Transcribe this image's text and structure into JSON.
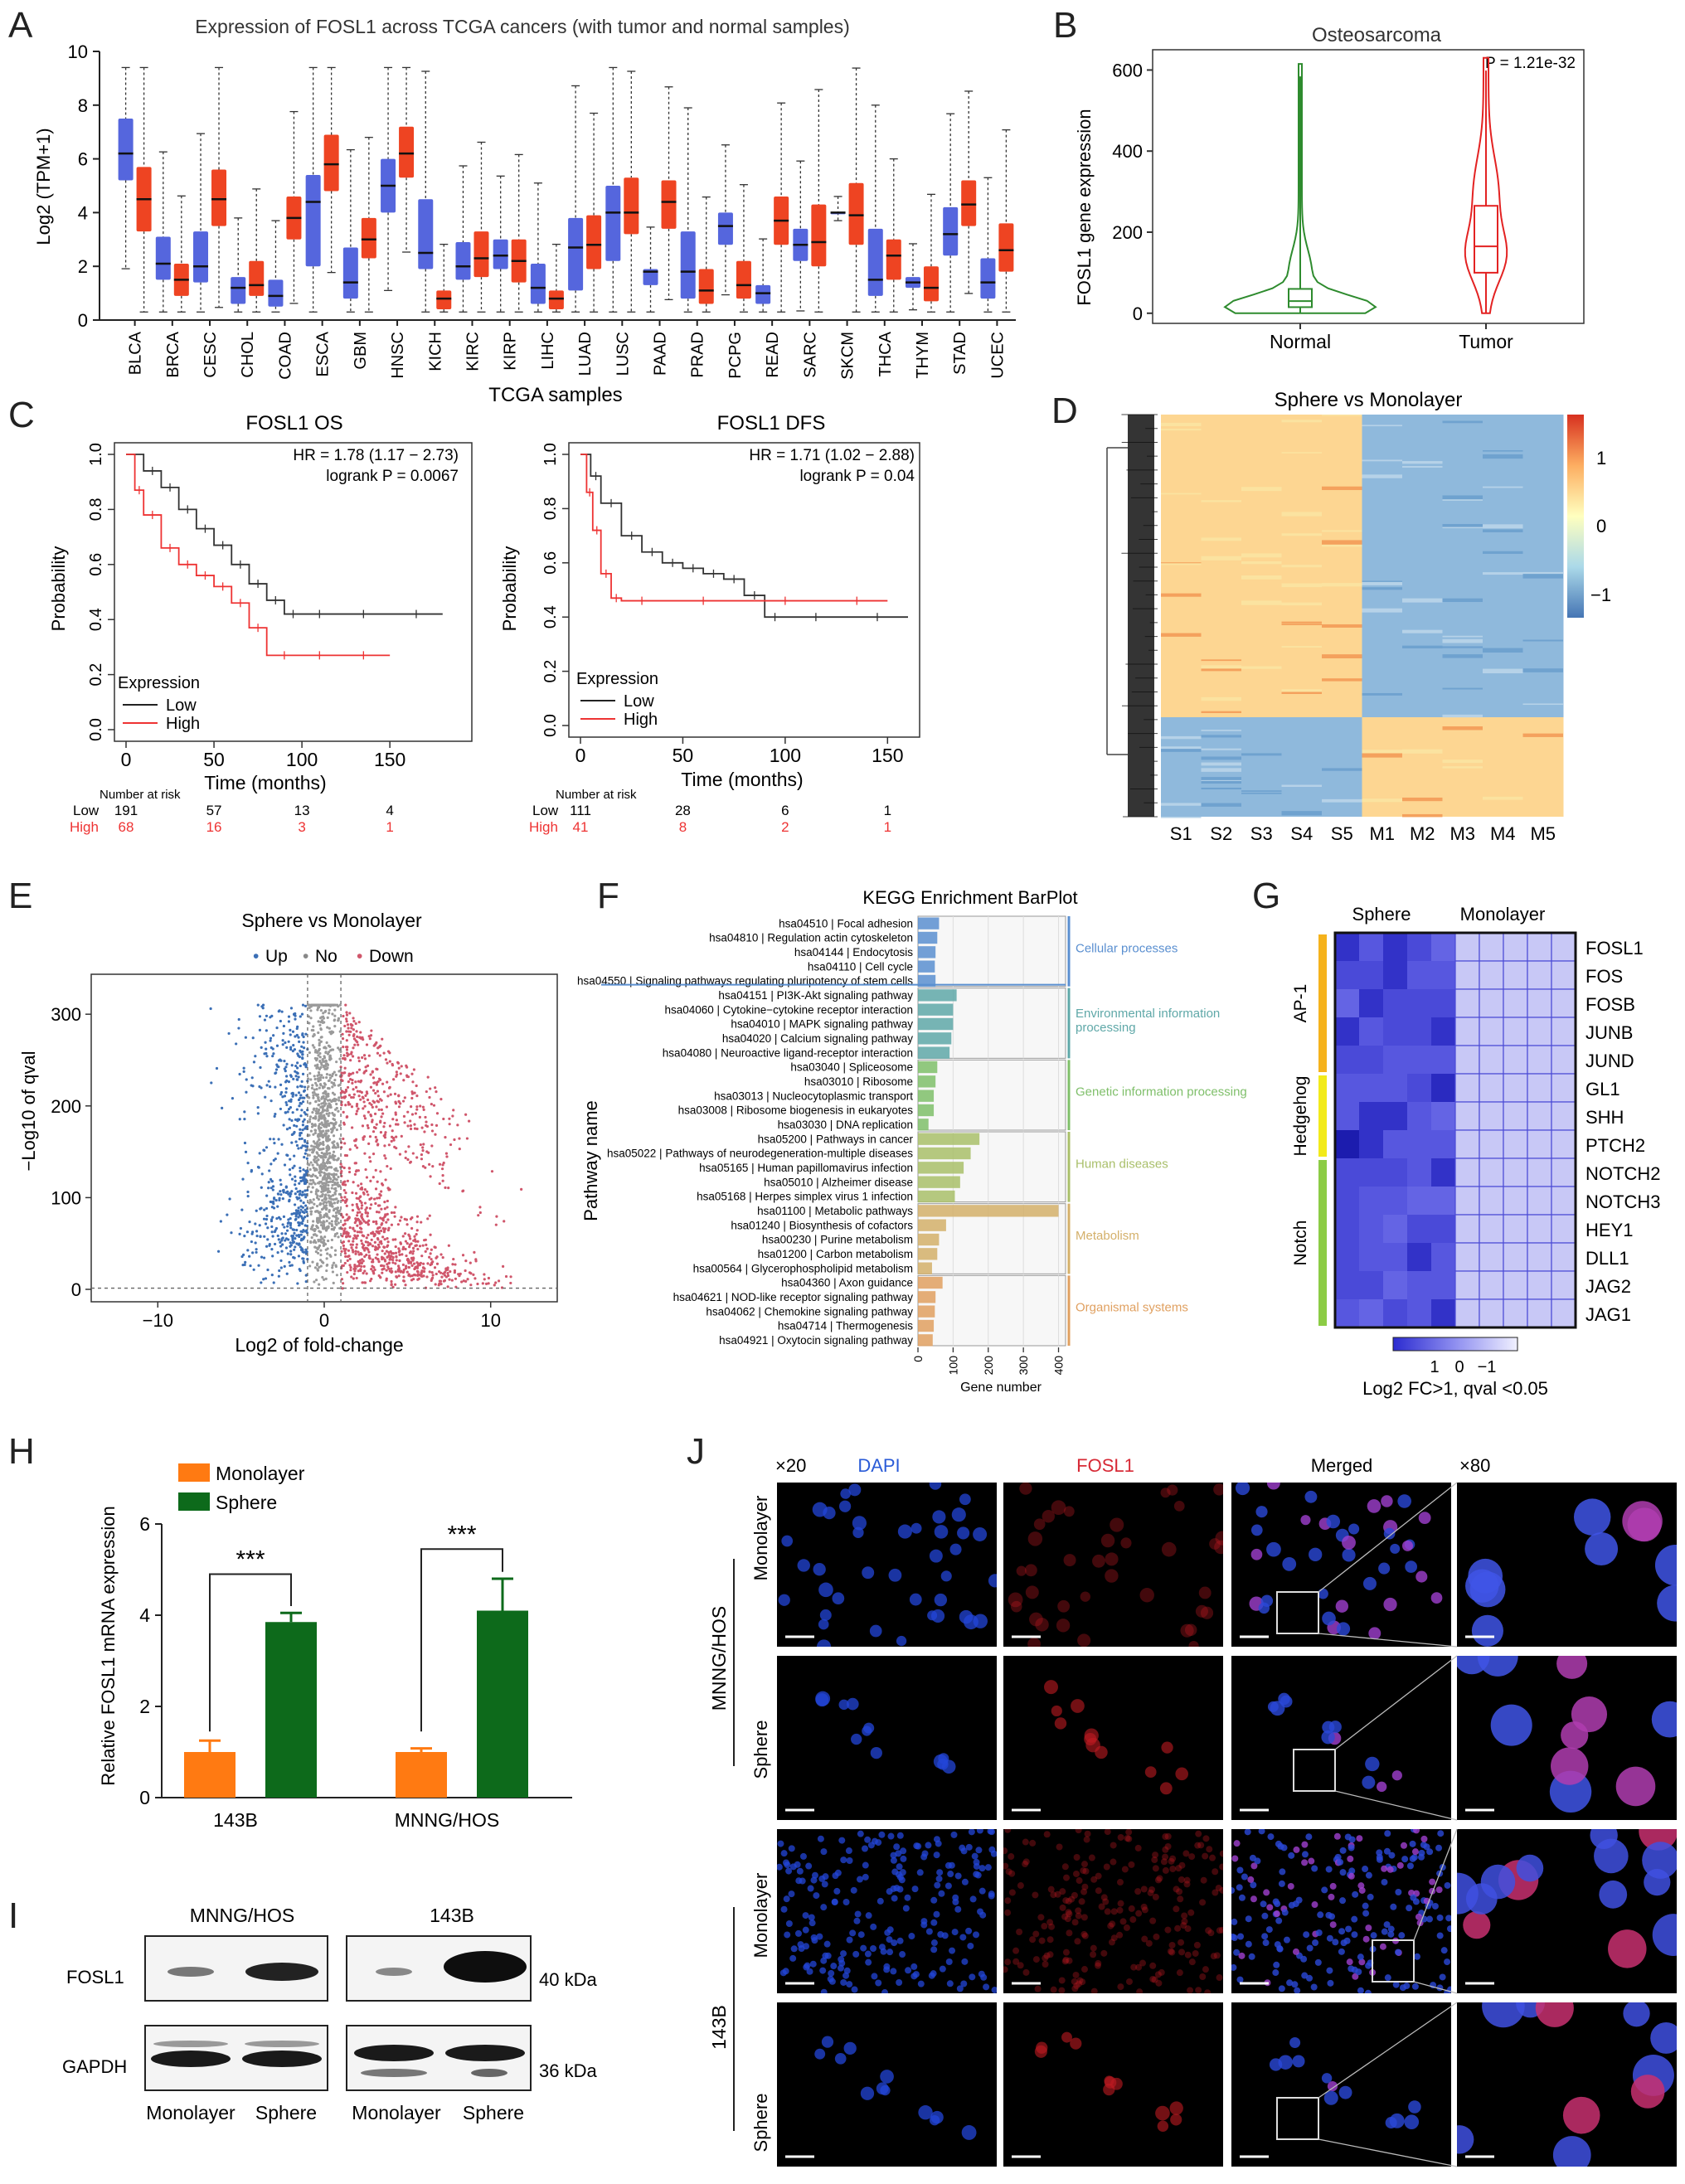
{
  "panels": {
    "A": {
      "letter": "A",
      "title": "Expression of FOSL1 across TCGA cancers (with tumor and normal samples)",
      "ylabel": "Log2 (TPM+1)",
      "xlabel": "TCGA samples",
      "yticks": [
        "0",
        "2",
        "4",
        "6",
        "8",
        "10"
      ]
    },
    "B": {
      "letter": "B",
      "title": "Osteosarcoma",
      "ylabel": "FOSL1 gene expression",
      "pval": "P = 1.21e-32",
      "yticks": [
        "0",
        "200",
        "400",
        "600"
      ],
      "groups": [
        "Normal",
        "Tumor"
      ]
    },
    "C": {
      "letter": "C",
      "os": {
        "title": "FOSL1  OS",
        "hr": "HR = 1.78 (1.17 − 2.73)",
        "logrank": "logrank P = 0.0067",
        "ylabel": "Probability",
        "xlabel": "Time (months)",
        "legend_title": "Expression",
        "legend_low": "Low",
        "legend_high": "High",
        "risk_title": "Number at risk",
        "risk_low_label": "Low",
        "risk_high_label": "High",
        "risk_low": [
          "191",
          "57",
          "13",
          "4"
        ],
        "risk_high": [
          "68",
          "16",
          "3",
          "1"
        ],
        "xticks": [
          "0",
          "50",
          "100",
          "150"
        ],
        "yticks": [
          "0.0",
          "0.2",
          "0.4",
          "0.6",
          "0.8",
          "1.0"
        ]
      },
      "dfs": {
        "title": "FOSL1  DFS",
        "hr": "HR = 1.71 (1.02 − 2.88)",
        "logrank": "logrank P = 0.04",
        "ylabel": "Probability",
        "xlabel": "Time (months)",
        "legend_title": "Expression",
        "legend_low": "Low",
        "legend_high": "High",
        "risk_title": "Number at risk",
        "risk_low_label": "Low",
        "risk_high_label": "High",
        "risk_low": [
          "111",
          "28",
          "6",
          "1"
        ],
        "risk_high": [
          "41",
          "8",
          "2",
          "1"
        ],
        "xticks": [
          "0",
          "50",
          "100",
          "150"
        ],
        "yticks": [
          "0.0",
          "0.2",
          "0.4",
          "0.6",
          "0.8",
          "1.0"
        ]
      }
    },
    "D": {
      "letter": "D",
      "title": "Sphere vs Monolayer",
      "samples": [
        "S1",
        "S2",
        "S3",
        "S4",
        "S5",
        "M1",
        "M2",
        "M3",
        "M4",
        "M5"
      ],
      "scale": [
        "1",
        "0",
        "−1"
      ]
    },
    "E": {
      "letter": "E",
      "title": "Sphere vs Monolayer",
      "legend": [
        "Up",
        "No",
        "Down"
      ],
      "ylabel": "−Log10 of qval",
      "xlabel": "Log2 of fold-change",
      "xticks": [
        "−10",
        "0",
        "10"
      ],
      "yticks": [
        "0",
        "100",
        "200",
        "300"
      ]
    },
    "F": {
      "letter": "F",
      "title": "KEGG Enrichment BarPlot",
      "ylabel": "Pathway name",
      "xlabel": "Gene number",
      "xticks": [
        "0",
        "100",
        "200",
        "300",
        "400"
      ],
      "pathways": [
        "hsa04510 | Focal adhesion",
        "hsa04810 | Regulation actin cytoskeleton",
        "hsa04144 | Endocytosis",
        "hsa04110 | Cell cycle",
        "hsa04550 | Signaling pathways regulating pluripotency of stem cells",
        "hsa04151 | PI3K-Akt signaling pathway",
        "hsa04060 | Cytokine−cytokine receptor interaction",
        "hsa04010 | MAPK signaling pathway",
        "hsa04020 | Calcium signaling pathway",
        "hsa04080 | Neuroactive ligand-receptor interaction",
        "hsa03040 | Spliceosome",
        "hsa03010 | Ribosome",
        "hsa03013 | Nucleocytoplasmic transport",
        "hsa03008 | Ribosome biogenesis in eukaryotes",
        "hsa03030 | DNA replication",
        "hsa05200 | Pathways in cancer",
        "hsa05022 | Pathways of neurodegeneration-multiple diseases",
        "hsa05165 | Human papillomavirus infection",
        "hsa05010 | Alzheimer disease",
        "hsa05168 | Herpes simplex virus 1 infection",
        "hsa01100 | Metabolic pathways",
        "hsa01240 | Biosynthesis of cofactors",
        "hsa00230 | Purine metabolism",
        "hsa01200 | Carbon metabolism",
        "hsa00564 | Glycerophospholipid metabolism",
        "hsa04360 | Axon guidance",
        "hsa04621 | NOD-like receptor signaling pathway",
        "hsa04062 | Chemokine signaling pathway",
        "hsa04714 | Thermogenesis",
        "hsa04921 | Oxytocin signaling pathway"
      ],
      "categories": [
        {
          "name": "Cellular processes",
          "color": "#5a8fd0"
        },
        {
          "name": "Environmental information processing",
          "color": "#5fa8a8"
        },
        {
          "name": "Genetic information processing",
          "color": "#7fbf6a"
        },
        {
          "name": "Human diseases",
          "color": "#a9bf6a"
        },
        {
          "name": "Metabolism",
          "color": "#d4b06a"
        },
        {
          "name": "Organismal systems",
          "color": "#e0a060"
        }
      ]
    },
    "G": {
      "letter": "G",
      "col_labels": [
        "Sphere",
        "Monolayer"
      ],
      "groups": [
        "AP-1",
        "Hedgehog",
        "Notch"
      ],
      "genes": [
        "FOSL1",
        "FOS",
        "FOSB",
        "JUNB",
        "JUND",
        "GL1",
        "SHH",
        "PTCH2",
        "NOTCH2",
        "NOTCH3",
        "HEY1",
        "DLL1",
        "JAG2",
        "JAG1"
      ],
      "scale": [
        "1",
        "0",
        "−1"
      ],
      "caption": "Log2 FC>1, qval <0.05"
    },
    "H": {
      "letter": "H",
      "ylabel": "Relative FOSL1 mRNA expression",
      "legend": [
        "Monolayer",
        "Sphere"
      ],
      "yticks": [
        "0",
        "2",
        "4",
        "6"
      ],
      "groups": [
        "143B",
        "MNNG/HOS"
      ],
      "sig": "***"
    },
    "I": {
      "letter": "I",
      "cell_lines": [
        "MNNG/HOS",
        "143B"
      ],
      "rows": [
        "FOSL1",
        "GAPDH"
      ],
      "sizes": [
        "40 kDa",
        "36 kDa"
      ],
      "lanes": [
        "Monolayer",
        "Sphere"
      ]
    },
    "J": {
      "letter": "J",
      "mag_low": "×20",
      "mag_high": "×80",
      "channels": [
        "DAPI",
        "FOSL1",
        "Merged"
      ],
      "cell_lines": [
        "MNNG/HOS",
        "143B"
      ],
      "conditions": [
        "Monolayer",
        "Sphere"
      ],
      "colors": {
        "dapi": "#1f4fd8",
        "fosl1": "#e0202a"
      }
    }
  },
  "chart_data": [
    {
      "type": "box",
      "panel": "A",
      "title": "Expression of FOSL1 across TCGA cancers (with tumor and normal samples)",
      "xlabel": "TCGA samples",
      "ylabel": "Log2 (TPM+1)",
      "ylim": [
        0,
        10
      ],
      "categories": [
        "BLCA",
        "BRCA",
        "CESC",
        "CHOL",
        "COAD",
        "ESCA",
        "GBM",
        "HNSC",
        "KICH",
        "KIRC",
        "KIRP",
        "LIHC",
        "LUAD",
        "LUSC",
        "PAAD",
        "PRAD",
        "PCPG",
        "READ",
        "SARC",
        "SKCM",
        "THCA",
        "THYM",
        "STAD",
        "UCEC"
      ],
      "normal_median": [
        6.2,
        2.1,
        2.0,
        1.2,
        0.9,
        4.4,
        1.4,
        5.0,
        2.5,
        2.0,
        2.4,
        1.2,
        2.7,
        4.0,
        1.8,
        1.8,
        3.5,
        1.0,
        2.8,
        4.0,
        1.5,
        1.4,
        3.2,
        1.4
      ],
      "normal_q1": [
        5.2,
        1.5,
        1.4,
        0.6,
        0.5,
        2.0,
        0.8,
        4.0,
        1.9,
        1.5,
        1.9,
        0.6,
        1.1,
        2.2,
        1.3,
        0.8,
        2.8,
        0.6,
        2.2,
        4.0,
        0.9,
        1.2,
        2.4,
        0.8
      ],
      "normal_q3": [
        7.5,
        3.1,
        3.3,
        1.6,
        1.5,
        5.4,
        2.7,
        6.0,
        4.5,
        2.9,
        3.0,
        2.1,
        3.8,
        5.0,
        1.9,
        3.3,
        4.0,
        1.3,
        3.4,
        4.0,
        3.4,
        1.6,
        4.2,
        2.3
      ],
      "tumor_median": [
        4.5,
        1.5,
        4.5,
        1.3,
        3.8,
        5.8,
        3.0,
        6.2,
        0.8,
        2.3,
        2.2,
        0.8,
        2.8,
        4.0,
        4.4,
        1.1,
        1.3,
        3.7,
        2.9,
        3.9,
        2.4,
        1.2,
        4.3,
        2.6
      ],
      "tumor_q1": [
        3.3,
        0.9,
        3.5,
        0.9,
        3.0,
        4.8,
        2.3,
        5.3,
        0.4,
        1.6,
        1.4,
        0.4,
        1.9,
        3.2,
        3.4,
        0.6,
        0.8,
        2.8,
        2.0,
        2.8,
        1.5,
        0.7,
        3.5,
        1.8
      ],
      "tumor_q3": [
        5.7,
        2.1,
        5.6,
        2.2,
        4.6,
        6.9,
        3.8,
        7.2,
        1.1,
        3.3,
        3.0,
        1.1,
        3.9,
        5.3,
        5.2,
        1.9,
        2.2,
        4.6,
        4.3,
        5.1,
        3.0,
        2.0,
        5.2,
        3.6
      ],
      "series": [
        {
          "name": "Normal"
        },
        {
          "name": "Tumor"
        }
      ]
    },
    {
      "type": "violin",
      "panel": "B",
      "title": "Osteosarcoma",
      "ylabel": "FOSL1 gene expression",
      "ylim": [
        0,
        650
      ],
      "categories": [
        "Normal",
        "Tumor"
      ],
      "median": [
        30,
        165
      ],
      "q1": [
        15,
        100
      ],
      "q3": [
        60,
        265
      ],
      "max": [
        615,
        630
      ]
    },
    {
      "type": "line",
      "panel": "C-OS",
      "title": "FOSL1  OS",
      "xlabel": "Time (months)",
      "ylabel": "Probability",
      "xlim": [
        0,
        190
      ],
      "ylim": [
        0,
        1
      ],
      "series": [
        {
          "name": "Low",
          "x": [
            0,
            10,
            20,
            30,
            40,
            50,
            60,
            70,
            80,
            90,
            100,
            120,
            150,
            180
          ],
          "y": [
            1.0,
            0.94,
            0.88,
            0.8,
            0.73,
            0.67,
            0.6,
            0.53,
            0.47,
            0.42,
            0.42,
            0.42,
            0.42,
            0.42
          ]
        },
        {
          "name": "High",
          "x": [
            0,
            5,
            10,
            20,
            30,
            40,
            50,
            60,
            70,
            80,
            100,
            120,
            150
          ],
          "y": [
            1.0,
            0.87,
            0.78,
            0.66,
            0.6,
            0.56,
            0.52,
            0.46,
            0.37,
            0.27,
            0.27,
            0.27,
            0.27
          ]
        }
      ]
    },
    {
      "type": "line",
      "panel": "C-DFS",
      "title": "FOSL1  DFS",
      "xlabel": "Time (months)",
      "ylabel": "Probability",
      "xlim": [
        0,
        160
      ],
      "ylim": [
        0,
        1
      ],
      "series": [
        {
          "name": "Low",
          "x": [
            0,
            5,
            10,
            20,
            30,
            40,
            50,
            60,
            70,
            80,
            90,
            100,
            130,
            160
          ],
          "y": [
            1.0,
            0.92,
            0.82,
            0.7,
            0.64,
            0.6,
            0.58,
            0.56,
            0.54,
            0.48,
            0.4,
            0.4,
            0.4,
            0.4
          ]
        },
        {
          "name": "High",
          "x": [
            0,
            3,
            6,
            10,
            15,
            20,
            40,
            80,
            120,
            150
          ],
          "y": [
            1.0,
            0.86,
            0.72,
            0.56,
            0.47,
            0.46,
            0.46,
            0.46,
            0.46,
            0.46
          ]
        }
      ]
    },
    {
      "type": "bar",
      "panel": "F",
      "title": "KEGG Enrichment BarPlot",
      "xlabel": "Gene number",
      "ylabel": "Pathway name",
      "xlim": [
        0,
        420
      ],
      "values": [
        60,
        55,
        50,
        48,
        50,
        110,
        100,
        100,
        95,
        90,
        55,
        50,
        45,
        45,
        30,
        175,
        150,
        130,
        120,
        105,
        400,
        80,
        60,
        55,
        40,
        70,
        50,
        48,
        45,
        42
      ],
      "groups": [
        0,
        0,
        0,
        0,
        0,
        1,
        1,
        1,
        1,
        1,
        2,
        2,
        2,
        2,
        2,
        3,
        3,
        3,
        3,
        3,
        4,
        4,
        4,
        4,
        4,
        5,
        5,
        5,
        5,
        5
      ]
    },
    {
      "type": "bar",
      "panel": "H",
      "ylabel": "Relative FOSL1 mRNA expression",
      "ylim": [
        0,
        6
      ],
      "categories": [
        "143B",
        "MNNG/HOS"
      ],
      "series": [
        {
          "name": "Monolayer",
          "values": [
            1.0,
            1.0
          ],
          "err": [
            0.25,
            0.08
          ]
        },
        {
          "name": "Sphere",
          "values": [
            3.85,
            4.1
          ],
          "err": [
            0.2,
            0.7
          ]
        }
      ]
    },
    {
      "type": "heatmap",
      "panel": "G",
      "rows": [
        "FOSL1",
        "FOS",
        "FOSB",
        "JUNB",
        "JUND",
        "GL1",
        "SHH",
        "PTCH2",
        "NOTCH2",
        "NOTCH3",
        "HEY1",
        "DLL1",
        "JAG2",
        "JAG1"
      ],
      "columns": [
        "Sphere",
        "Sphere",
        "Sphere",
        "Sphere",
        "Sphere",
        "Monolayer",
        "Monolayer",
        "Monolayer",
        "Monolayer",
        "Monolayer"
      ],
      "zlim": [
        -1.5,
        1.5
      ]
    }
  ]
}
